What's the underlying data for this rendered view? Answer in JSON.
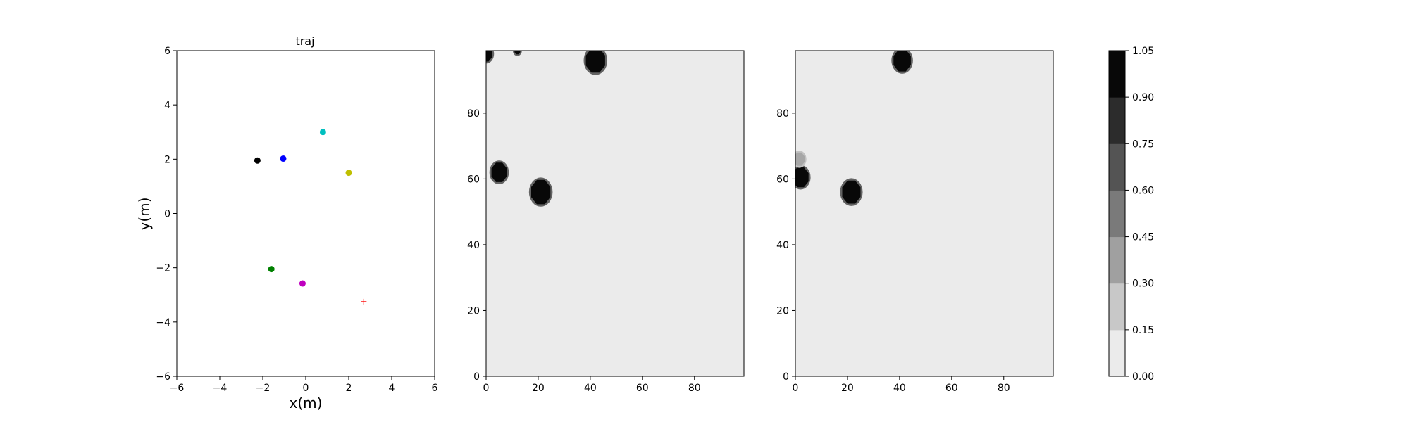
{
  "chart_data": [
    {
      "type": "scatter",
      "title": "traj",
      "xlabel": "x(m)",
      "ylabel": "y(m)",
      "xlim": [
        -6,
        6
      ],
      "ylim": [
        -6,
        6
      ],
      "xticks": [
        "−6",
        "−4",
        "−2",
        "0",
        "2",
        "4",
        "6"
      ],
      "yticks": [
        "−6",
        "−4",
        "−2",
        "0",
        "2",
        "4",
        "6"
      ],
      "grid": false,
      "points": [
        {
          "x": -2.25,
          "y": 1.95,
          "color": "#000000",
          "marker": "circle"
        },
        {
          "x": -1.05,
          "y": 2.02,
          "color": "#0000ff",
          "marker": "circle"
        },
        {
          "x": 0.8,
          "y": 3.0,
          "color": "#00bfbf",
          "marker": "circle"
        },
        {
          "x": 2.0,
          "y": 1.5,
          "color": "#bfbf00",
          "marker": "circle"
        },
        {
          "x": -1.6,
          "y": -2.05,
          "color": "#008000",
          "marker": "circle"
        },
        {
          "x": -0.15,
          "y": -2.58,
          "color": "#bf00bf",
          "marker": "circle"
        },
        {
          "x": 2.7,
          "y": -3.25,
          "color": "#ff0000",
          "marker": "plus"
        }
      ]
    },
    {
      "type": "heatmap",
      "xlim": [
        0,
        99
      ],
      "ylim": [
        0,
        99
      ],
      "xticks": [
        "0",
        "20",
        "40",
        "60",
        "80"
      ],
      "yticks": [
        "0",
        "20",
        "40",
        "60",
        "80"
      ],
      "background_value": 0.05,
      "blobs": [
        {
          "x": 0,
          "y": 98,
          "r": 2.5,
          "value": 1.0
        },
        {
          "x": 12,
          "y": 99,
          "r": 1.2,
          "value": 1.0
        },
        {
          "x": 42,
          "y": 96,
          "r": 4.0,
          "value": 1.0
        },
        {
          "x": 5,
          "y": 62,
          "r": 3.2,
          "value": 1.0
        },
        {
          "x": 21,
          "y": 56,
          "r": 4.0,
          "value": 1.0
        }
      ]
    },
    {
      "type": "heatmap",
      "xlim": [
        0,
        99
      ],
      "ylim": [
        0,
        99
      ],
      "xticks": [
        "0",
        "20",
        "40",
        "60",
        "80"
      ],
      "yticks": [
        "0",
        "20",
        "40",
        "60",
        "80"
      ],
      "background_value": 0.05,
      "blobs": [
        {
          "x": 41,
          "y": 96,
          "r": 3.6,
          "value": 1.0
        },
        {
          "x": 2,
          "y": 60.5,
          "r": 3.3,
          "value": 1.0
        },
        {
          "x": 1.5,
          "y": 66,
          "r": 2.2,
          "value": 0.3
        },
        {
          "x": 21.5,
          "y": 56,
          "r": 3.8,
          "value": 1.0
        }
      ]
    }
  ],
  "colorbar": {
    "levels": [
      "0.00",
      "0.15",
      "0.30",
      "0.45",
      "0.60",
      "0.75",
      "0.90",
      "1.05"
    ],
    "colors": [
      "#ebebeb",
      "#c8c8c8",
      "#a0a0a0",
      "#7a7a7a",
      "#545454",
      "#2c2c2c",
      "#080808"
    ]
  }
}
